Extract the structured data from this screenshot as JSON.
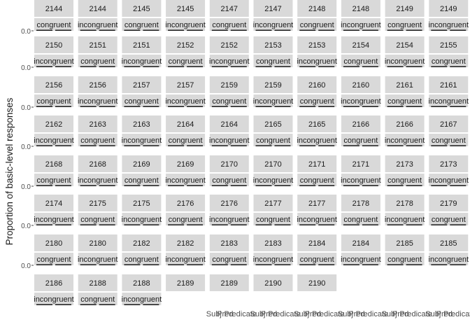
{
  "chart_data": {
    "type": "bar",
    "ylabel": "Proportion of basic-level responses",
    "y_tick_label": "0.0",
    "panel_columns": 11,
    "facets": [
      {
        "id": "2144",
        "strips": [
          "congruent"
        ]
      },
      {
        "id": "2144",
        "strips": [
          "incongruent"
        ]
      },
      {
        "id": "2145",
        "strips": [
          "congruent"
        ]
      },
      {
        "id": "2145",
        "strips": [
          "incongruent"
        ]
      },
      {
        "id": "2147",
        "strips": [
          "congruent"
        ]
      },
      {
        "id": "2147",
        "strips": [
          "incongruent"
        ]
      },
      {
        "id": "2148",
        "strips": [
          "congruent"
        ]
      },
      {
        "id": "2148",
        "strips": [
          "incongruent"
        ]
      },
      {
        "id": "2149",
        "strips": [
          "congruent"
        ]
      },
      {
        "id": "2149",
        "strips": [
          "incongruent"
        ]
      },
      {
        "id": "2150",
        "strips": [
          "congruent"
        ]
      },
      {
        "id": "2150",
        "strips": [
          "incongruent"
        ]
      },
      {
        "id": "2151",
        "strips": [
          "congruent"
        ]
      },
      {
        "id": "2151",
        "strips": [
          "incongruent"
        ]
      },
      {
        "id": "2152",
        "strips": [
          "congruent"
        ]
      },
      {
        "id": "2152",
        "strips": [
          "incongruent"
        ]
      },
      {
        "id": "2153",
        "strips": [
          "congruent"
        ]
      },
      {
        "id": "2153",
        "strips": [
          "incongruent"
        ]
      },
      {
        "id": "2154",
        "strips": [
          "congruent"
        ]
      },
      {
        "id": "2154",
        "strips": [
          "incongruent"
        ]
      },
      {
        "id": "2155",
        "strips": [
          "congruent"
        ]
      },
      {
        "id": "2155",
        "strips": [
          "incongruent"
        ]
      },
      {
        "id": "2156",
        "strips": [
          "congruent"
        ]
      },
      {
        "id": "2156",
        "strips": [
          "incongruent"
        ]
      },
      {
        "id": "2157",
        "strips": [
          "congruent"
        ]
      },
      {
        "id": "2157",
        "strips": [
          "incongruent"
        ]
      },
      {
        "id": "2159",
        "strips": [
          "congruent"
        ]
      },
      {
        "id": "2159",
        "strips": [
          "incongruent"
        ]
      },
      {
        "id": "2160",
        "strips": [
          "congruent"
        ]
      },
      {
        "id": "2160",
        "strips": [
          "incongruent"
        ]
      },
      {
        "id": "2161",
        "strips": [
          "congruent"
        ]
      },
      {
        "id": "2161",
        "strips": [
          "incongruent"
        ]
      },
      {
        "id": "2162",
        "strips": [
          "congruent"
        ]
      },
      {
        "id": "2162",
        "strips": [
          "incongruent"
        ]
      },
      {
        "id": "2163",
        "strips": [
          "congruent"
        ]
      },
      {
        "id": "2163",
        "strips": [
          "incongruent"
        ]
      },
      {
        "id": "2164",
        "strips": [
          "congruent"
        ]
      },
      {
        "id": "2164",
        "strips": [
          "incongruent"
        ]
      },
      {
        "id": "2165",
        "strips": [
          "congruent"
        ]
      },
      {
        "id": "2165",
        "strips": [
          "incongruent"
        ]
      },
      {
        "id": "2166",
        "strips": [
          "congruent"
        ]
      },
      {
        "id": "2166",
        "strips": [
          "incongruent"
        ]
      },
      {
        "id": "2167",
        "strips": [
          "congruent"
        ]
      },
      {
        "id": "2167",
        "strips": [
          "incongruent"
        ]
      },
      {
        "id": "2168",
        "strips": [
          "congruent"
        ]
      },
      {
        "id": "2168",
        "strips": [
          "incongruent"
        ]
      },
      {
        "id": "2169",
        "strips": [
          "congruent"
        ]
      },
      {
        "id": "2169",
        "strips": [
          "incongruent"
        ]
      },
      {
        "id": "2170",
        "strips": [
          "congruent"
        ]
      },
      {
        "id": "2170",
        "strips": [
          "incongruent"
        ]
      },
      {
        "id": "2171",
        "strips": [
          "congruent"
        ]
      },
      {
        "id": "2171",
        "strips": [
          "incongruent"
        ]
      },
      {
        "id": "2173",
        "strips": [
          "congruent"
        ]
      },
      {
        "id": "2173",
        "strips": [
          "incongruent"
        ]
      },
      {
        "id": "2174",
        "strips": [
          "congruent"
        ]
      },
      {
        "id": "2174",
        "strips": [
          "incongruent"
        ]
      },
      {
        "id": "2175",
        "strips": [
          "congruent"
        ]
      },
      {
        "id": "2175",
        "strips": [
          "incongruent"
        ]
      },
      {
        "id": "2176",
        "strips": [
          "congruent"
        ]
      },
      {
        "id": "2176",
        "strips": [
          "incongruent"
        ]
      },
      {
        "id": "2177",
        "strips": [
          "congruent"
        ]
      },
      {
        "id": "2177",
        "strips": [
          "incongruent"
        ]
      },
      {
        "id": "2178",
        "strips": [
          "congruent"
        ]
      },
      {
        "id": "2178",
        "strips": [
          "incongruent"
        ]
      },
      {
        "id": "2179",
        "strips": [
          "congruent"
        ]
      },
      {
        "id": "2179",
        "strips": [
          "incongruent"
        ]
      },
      {
        "id": "2180",
        "strips": [
          "congruent"
        ]
      },
      {
        "id": "2180",
        "strips": [
          "incongruent"
        ]
      },
      {
        "id": "2182",
        "strips": [
          "congruent"
        ]
      },
      {
        "id": "2182",
        "strips": [
          "incongruent"
        ]
      },
      {
        "id": "2183",
        "strips": [
          "congruent"
        ]
      },
      {
        "id": "2183",
        "strips": [
          "incongruent"
        ]
      },
      {
        "id": "2184",
        "strips": [
          "congruent"
        ]
      },
      {
        "id": "2184",
        "strips": [
          "incongruent"
        ]
      },
      {
        "id": "2185",
        "strips": [
          "congruent"
        ]
      },
      {
        "id": "2185",
        "strips": [
          "incongruent"
        ]
      },
      {
        "id": "2186",
        "strips": [
          "congruent"
        ]
      },
      {
        "id": "2186",
        "strips": [
          "incongruent"
        ]
      },
      {
        "id": "2188",
        "strips": [
          "congruent"
        ]
      },
      {
        "id": "2188",
        "strips": [
          "incongruent"
        ]
      },
      {
        "id": "2189",
        "strips": []
      },
      {
        "id": "2189",
        "strips": []
      },
      {
        "id": "2190",
        "strips": []
      },
      {
        "id": "2190",
        "strips": []
      }
    ],
    "x_tick_labels": [
      "Subj",
      "Pred",
      "Predicate"
    ],
    "colors": {
      "strip": "#d9d9d9",
      "axis_text": "#4d4d4d",
      "bar": "#1a1a1a"
    }
  }
}
